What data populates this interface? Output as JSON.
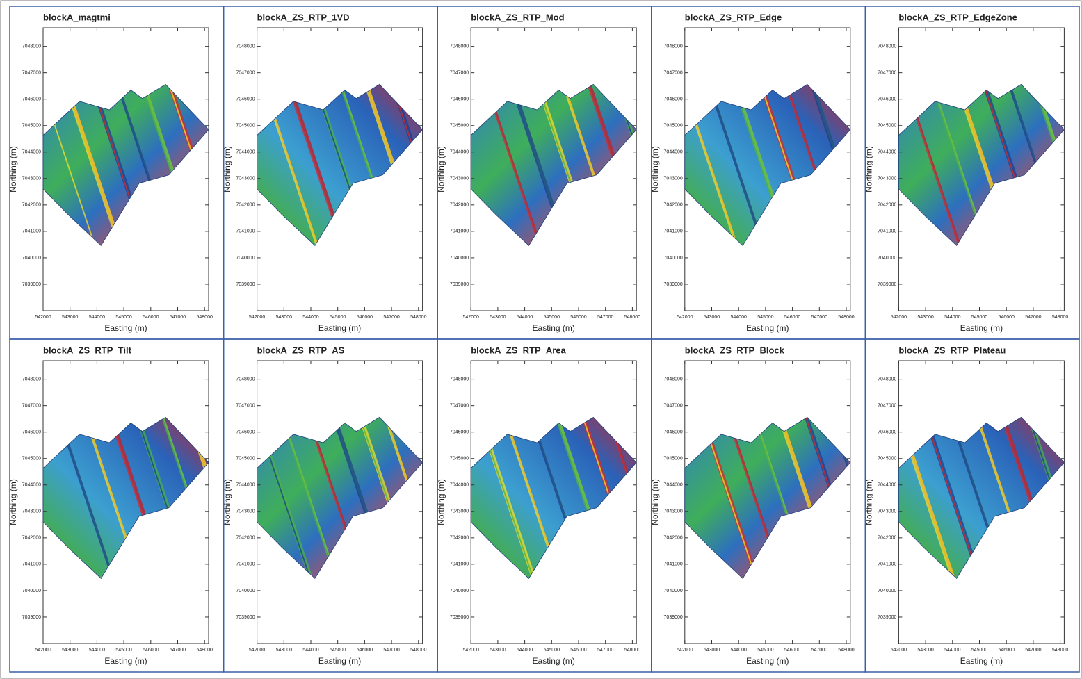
{
  "panels": [
    {
      "title": "blockA_magtmi"
    },
    {
      "title": "blockA_ZS_RTP_1VD"
    },
    {
      "title": "blockA_ZS_RTP_Mod"
    },
    {
      "title": "blockA_ZS_RTP_Edge"
    },
    {
      "title": "blockA_ZS_RTP_EdgeZone"
    },
    {
      "title": "blockA_ZS_RTP_Tilt"
    },
    {
      "title": "blockA_ZS_RTP_AS"
    },
    {
      "title": "blockA_ZS_RTP_Area"
    },
    {
      "title": "blockA_ZS_RTP_Block"
    },
    {
      "title": "blockA_ZS_RTP_Plateau"
    }
  ],
  "axes": {
    "x_label": "Easting (m)",
    "y_label": "Northing (m)",
    "xlim": [
      542000,
      548150
    ],
    "ylim": [
      7038000,
      7048700
    ],
    "xticks": [
      542000,
      543000,
      544000,
      545000,
      546000,
      547000,
      548000
    ],
    "yticks": [
      7039000,
      7040000,
      7041000,
      7042000,
      7043000,
      7044000,
      7045000,
      7046000,
      7047000,
      7048000
    ]
  }
}
